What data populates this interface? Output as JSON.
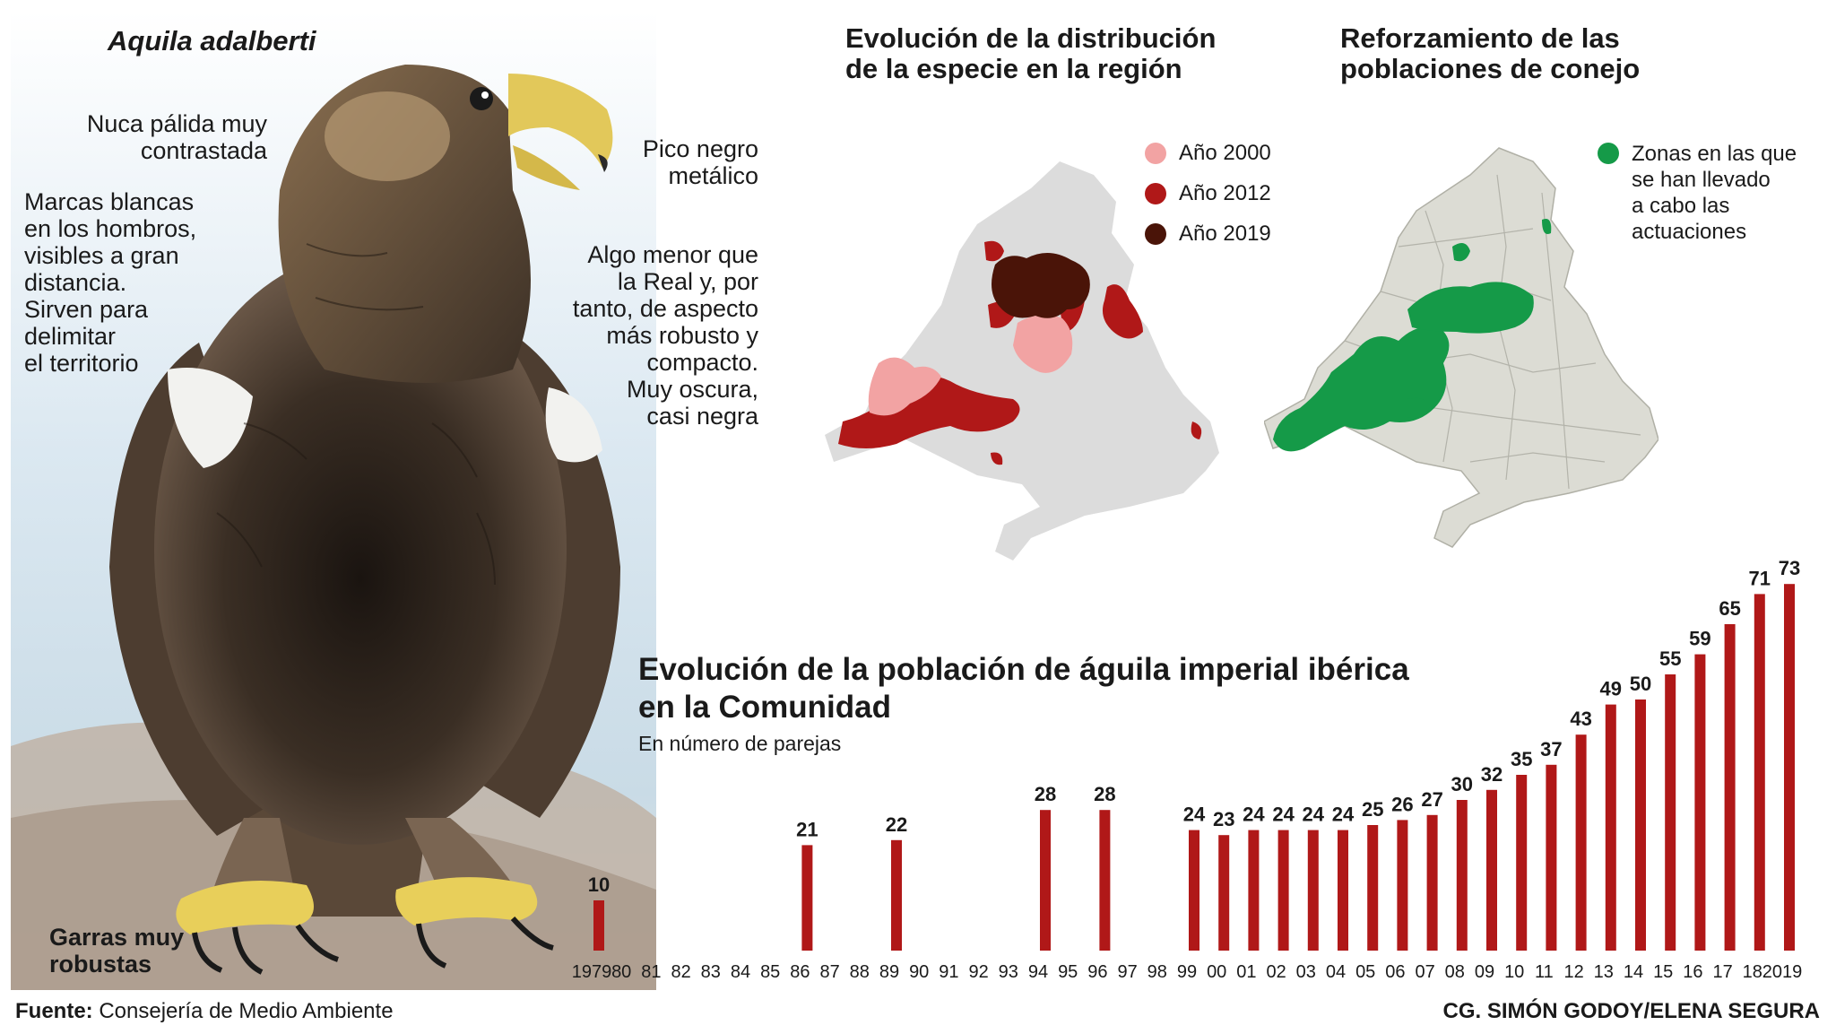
{
  "eagle": {
    "species_name": "Aquila adalberti",
    "notes": {
      "nape": [
        "Nuca pálida muy",
        "contrastada"
      ],
      "shoulders": [
        "Marcas blancas",
        "en los hombros,",
        "visibles a gran",
        "distancia.",
        "Sirven para",
        "delimitar",
        "el territorio"
      ],
      "beak": [
        "Pico negro",
        "metálico"
      ],
      "body": [
        "Algo menor que",
        "la Real y, por",
        "tanto, de aspecto",
        "más robusto y",
        "compacto.",
        "Muy oscura,",
        "casi negra"
      ],
      "talons": [
        "Garras muy",
        "robustas"
      ]
    }
  },
  "map_distribution": {
    "title": [
      "Evolución de la distribución",
      "de la especie en la región"
    ],
    "legend": [
      {
        "label": "Año 2000",
        "color": "#f2a3a3"
      },
      {
        "label": "Año 2012",
        "color": "#b01818"
      },
      {
        "label": "Año 2019",
        "color": "#4a1408"
      }
    ]
  },
  "map_rabbits": {
    "title": [
      "Reforzamiento de las",
      "poblaciones de conejo"
    ],
    "legend": [
      {
        "label": [
          "Zonas en las que",
          "se han llevado",
          "a cabo las",
          "actuaciones"
        ],
        "color": "#159a48"
      }
    ]
  },
  "chart_data": {
    "type": "bar",
    "title": [
      "Evolución de la población de águila imperial ibérica",
      "en la Comunidad"
    ],
    "subtitle": "En número de parejas",
    "categories": [
      "1979",
      "80",
      "81",
      "82",
      "83",
      "84",
      "85",
      "86",
      "87",
      "88",
      "89",
      "90",
      "91",
      "92",
      "93",
      "94",
      "95",
      "96",
      "97",
      "98",
      "99",
      "00",
      "01",
      "02",
      "03",
      "04",
      "05",
      "06",
      "07",
      "08",
      "09",
      "10",
      "11",
      "12",
      "13",
      "14",
      "15",
      "16",
      "17",
      "18",
      "2019"
    ],
    "values": [
      10,
      null,
      null,
      null,
      null,
      null,
      null,
      21,
      null,
      null,
      22,
      null,
      null,
      null,
      null,
      28,
      null,
      28,
      null,
      null,
      24,
      23,
      24,
      24,
      24,
      24,
      25,
      26,
      27,
      30,
      32,
      35,
      37,
      43,
      49,
      50,
      55,
      59,
      65,
      71,
      73
    ],
    "ylim": [
      0,
      75
    ],
    "bar_color": "#b01818",
    "grid": false
  },
  "footer": {
    "source_label": "Fuente:",
    "source_text": " Consejería de Medio Ambiente",
    "credit": "CG. SIMÓN GODOY/ELENA SEGURA"
  }
}
